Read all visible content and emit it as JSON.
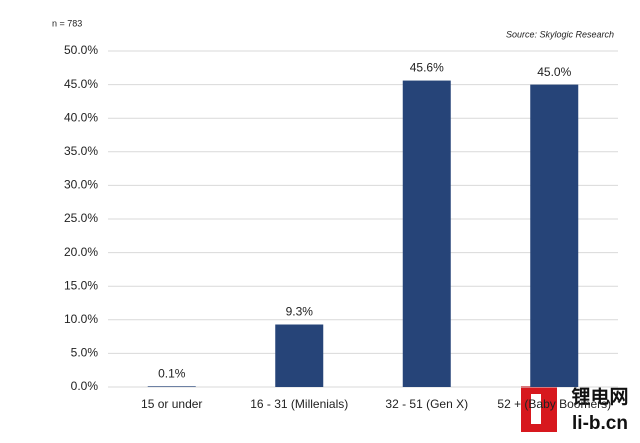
{
  "chart_data": {
    "type": "bar",
    "annotations": [
      "n = 783",
      "Source: Skylogic Research"
    ],
    "categories": [
      "15 or under",
      "16 - 31 (Millenials)",
      "32 - 51 (Gen X)",
      "52 + (Baby Boomers)"
    ],
    "values": [
      0.1,
      9.3,
      45.6,
      45.0
    ],
    "value_labels": [
      "0.1%",
      "9.3%",
      "45.6%",
      "45.0%"
    ],
    "color": "#264478",
    "ylim": [
      0,
      50
    ],
    "yticks": [
      {
        "value": 0,
        "label": "0.0%"
      },
      {
        "value": 5,
        "label": "5.0%"
      },
      {
        "value": 10,
        "label": "10.0%"
      },
      {
        "value": 15,
        "label": "15.0%"
      },
      {
        "value": 20,
        "label": "20.0%"
      },
      {
        "value": 25,
        "label": "25.0%"
      },
      {
        "value": 30,
        "label": "30.0%"
      },
      {
        "value": 35,
        "label": "35.0%"
      },
      {
        "value": 40,
        "label": "40.0%"
      },
      {
        "value": 45,
        "label": "45.0%"
      },
      {
        "value": 50,
        "label": "50.0%"
      }
    ],
    "grid": true
  },
  "watermark": [
    "锂电网",
    "li-b.cn"
  ]
}
